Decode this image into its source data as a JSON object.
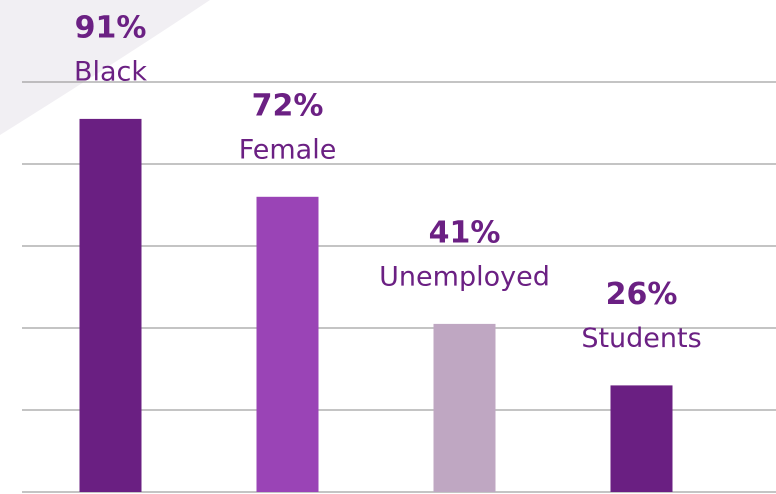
{
  "chart_data": {
    "type": "bar",
    "categories": [
      "Black",
      "Female",
      "Unemployed",
      "Students"
    ],
    "values": [
      91,
      72,
      41,
      26
    ],
    "value_labels": [
      "91%",
      "72%",
      "41%",
      "26%"
    ],
    "colors": [
      "#6a1f82",
      "#9a44b6",
      "#bfa7c2",
      "#6a1f82"
    ],
    "ylim": [
      0,
      100
    ],
    "yticks": [
      0,
      20,
      40,
      60,
      80,
      100
    ],
    "grid": true
  }
}
